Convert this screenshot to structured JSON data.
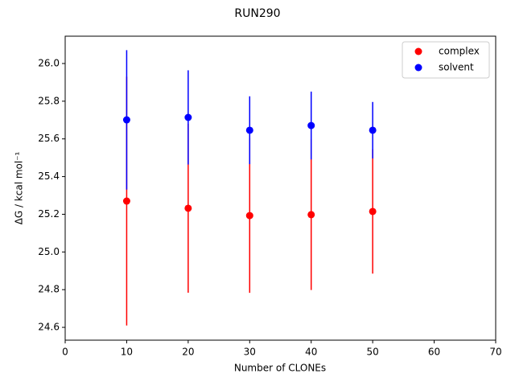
{
  "chart_data": {
    "type": "scatter",
    "title": "RUN290",
    "xlabel": "Number of CLONEs",
    "ylabel": "ΔG / kcal mol⁻¹",
    "x": [
      10,
      20,
      30,
      40,
      50
    ],
    "series": [
      {
        "name": "complex",
        "color": "#ff0000",
        "values": [
          25.27,
          25.232,
          25.193,
          25.198,
          25.215
        ],
        "errors": [
          0.66,
          0.448,
          0.41,
          0.4,
          0.33
        ]
      },
      {
        "name": "solvent",
        "color": "#0000ff",
        "values": [
          25.701,
          25.714,
          25.646,
          25.671,
          25.646
        ],
        "errors": [
          0.37,
          0.25,
          0.18,
          0.18,
          0.15
        ]
      }
    ],
    "xlim": [
      0,
      70
    ],
    "xticks": [
      0,
      10,
      20,
      30,
      40,
      50,
      60,
      70
    ],
    "ylim": [
      24.532,
      26.145
    ],
    "yticks": [
      24.6,
      24.8,
      {
        "value": 25,
        "label": "25.0"
      },
      25.2,
      25.4,
      25.6,
      25.8,
      {
        "value": 26,
        "label": "26.0"
      }
    ],
    "legend": "upper right",
    "grid": false
  }
}
